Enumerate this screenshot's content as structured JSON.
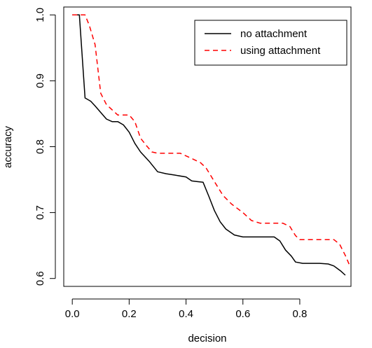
{
  "chart_data": {
    "type": "line",
    "title": "",
    "xlabel": "decision",
    "ylabel": "accuracy",
    "xlim": [
      -0.03,
      0.98
    ],
    "ylim": [
      0.588,
      1.012
    ],
    "x_ticks": [
      0.0,
      0.2,
      0.4,
      0.6,
      0.8
    ],
    "x_tick_labels": [
      "0.0",
      "0.2",
      "0.4",
      "0.6",
      "0.8"
    ],
    "y_ticks": [
      0.6,
      0.7,
      0.8,
      0.9,
      1.0
    ],
    "y_tick_labels": [
      "0.6",
      "0.7",
      "0.8",
      "0.9",
      "1.0"
    ],
    "grid": false,
    "legend_position": "top-right",
    "series": [
      {
        "name": "no attachment",
        "color": "#000000",
        "dash": "solid",
        "points": [
          [
            0.0,
            1.0
          ],
          [
            0.025,
            1.0
          ],
          [
            0.045,
            0.874
          ],
          [
            0.065,
            0.869
          ],
          [
            0.08,
            0.862
          ],
          [
            0.1,
            0.852
          ],
          [
            0.12,
            0.842
          ],
          [
            0.14,
            0.838
          ],
          [
            0.16,
            0.838
          ],
          [
            0.18,
            0.833
          ],
          [
            0.2,
            0.822
          ],
          [
            0.22,
            0.805
          ],
          [
            0.24,
            0.792
          ],
          [
            0.27,
            0.778
          ],
          [
            0.3,
            0.762
          ],
          [
            0.33,
            0.759
          ],
          [
            0.36,
            0.757
          ],
          [
            0.4,
            0.754
          ],
          [
            0.42,
            0.748
          ],
          [
            0.44,
            0.747
          ],
          [
            0.46,
            0.746
          ],
          [
            0.48,
            0.725
          ],
          [
            0.5,
            0.703
          ],
          [
            0.52,
            0.686
          ],
          [
            0.54,
            0.675
          ],
          [
            0.57,
            0.666
          ],
          [
            0.6,
            0.663
          ],
          [
            0.63,
            0.663
          ],
          [
            0.66,
            0.663
          ],
          [
            0.69,
            0.663
          ],
          [
            0.71,
            0.663
          ],
          [
            0.73,
            0.657
          ],
          [
            0.75,
            0.643
          ],
          [
            0.77,
            0.634
          ],
          [
            0.785,
            0.625
          ],
          [
            0.81,
            0.623
          ],
          [
            0.84,
            0.623
          ],
          [
            0.87,
            0.623
          ],
          [
            0.9,
            0.622
          ],
          [
            0.92,
            0.619
          ],
          [
            0.945,
            0.611
          ],
          [
            0.96,
            0.605
          ]
        ]
      },
      {
        "name": "using attachment",
        "color": "#ff0000",
        "dash": "dashed",
        "points": [
          [
            0.0,
            1.0
          ],
          [
            0.045,
            1.0
          ],
          [
            0.06,
            0.984
          ],
          [
            0.08,
            0.955
          ],
          [
            0.1,
            0.881
          ],
          [
            0.12,
            0.864
          ],
          [
            0.14,
            0.856
          ],
          [
            0.16,
            0.848
          ],
          [
            0.2,
            0.848
          ],
          [
            0.22,
            0.838
          ],
          [
            0.24,
            0.813
          ],
          [
            0.26,
            0.802
          ],
          [
            0.28,
            0.792
          ],
          [
            0.3,
            0.79
          ],
          [
            0.34,
            0.79
          ],
          [
            0.38,
            0.79
          ],
          [
            0.42,
            0.782
          ],
          [
            0.45,
            0.776
          ],
          [
            0.47,
            0.768
          ],
          [
            0.5,
            0.747
          ],
          [
            0.53,
            0.726
          ],
          [
            0.56,
            0.713
          ],
          [
            0.6,
            0.7
          ],
          [
            0.63,
            0.688
          ],
          [
            0.66,
            0.684
          ],
          [
            0.7,
            0.684
          ],
          [
            0.74,
            0.684
          ],
          [
            0.765,
            0.679
          ],
          [
            0.785,
            0.665
          ],
          [
            0.8,
            0.659
          ],
          [
            0.84,
            0.659
          ],
          [
            0.88,
            0.659
          ],
          [
            0.92,
            0.659
          ],
          [
            0.94,
            0.652
          ],
          [
            0.96,
            0.635
          ],
          [
            0.975,
            0.62
          ]
        ]
      }
    ]
  }
}
